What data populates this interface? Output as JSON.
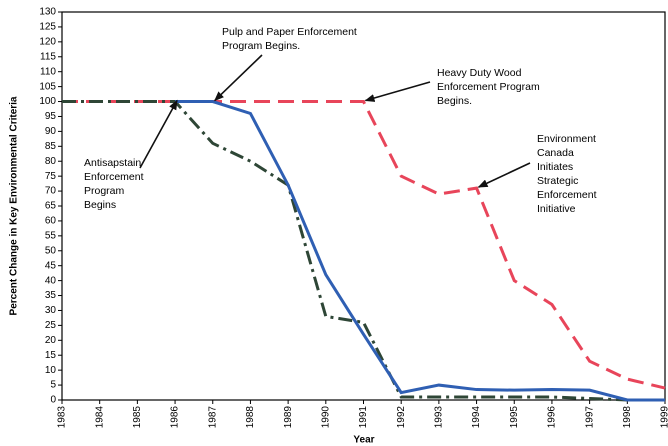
{
  "chart_data": {
    "type": "line",
    "x_label": "Year",
    "y_label": "Percent Change in Key Environmental Criteria",
    "x": [
      1983,
      1984,
      1985,
      1986,
      1987,
      1988,
      1989,
      1990,
      1991,
      1992,
      1993,
      1994,
      1995,
      1996,
      1997,
      1998,
      1999
    ],
    "xlim": [
      1983,
      1999
    ],
    "xticks": [
      1983,
      1984,
      1985,
      1986,
      1987,
      1988,
      1989,
      1990,
      1991,
      1992,
      1993,
      1994,
      1995,
      1996,
      1997,
      1998,
      1999
    ],
    "ylim": [
      0,
      130
    ],
    "yticks": [
      0,
      5,
      10,
      15,
      20,
      25,
      30,
      35,
      40,
      45,
      50,
      55,
      60,
      65,
      70,
      75,
      80,
      85,
      90,
      95,
      100,
      105,
      110,
      115,
      120,
      125,
      130
    ],
    "series": [
      {
        "color": "#e8455a",
        "style": "dashed",
        "values": [
          100,
          100,
          100,
          100,
          100,
          100,
          100,
          100,
          100,
          75,
          69,
          71,
          40,
          32,
          13,
          7,
          4
        ]
      },
      {
        "color": "#2e4636",
        "style": "dashdot",
        "values": [
          100,
          100,
          100,
          100,
          86,
          80,
          72,
          28,
          26,
          1,
          1,
          1,
          1,
          1,
          0.5,
          0,
          0
        ]
      },
      {
        "color": "#2f5fb3",
        "style": "solid",
        "values": [
          null,
          null,
          null,
          100,
          100,
          96,
          72,
          42,
          22,
          2.5,
          5,
          3.5,
          3.3,
          3.5,
          3.3,
          0,
          0
        ]
      }
    ],
    "annotations": [
      {
        "lines": [
          "Pulp and Paper Enforcement",
          "Program Begins."
        ],
        "x": 1987,
        "y": 100
      },
      {
        "lines": [
          "Heavy Duty Wood",
          "Enforcement Program",
          "Begins."
        ],
        "x": 1991,
        "y": 100
      },
      {
        "lines": [
          "Antisapstain",
          "Enforcement",
          "Program",
          "Begins"
        ],
        "x": 1986,
        "y": 100
      },
      {
        "lines": [
          "Environment",
          "Canada",
          "Initiates",
          "Strategic",
          "Enforcement",
          "Initiative"
        ],
        "x": 1994,
        "y": 71
      }
    ]
  }
}
